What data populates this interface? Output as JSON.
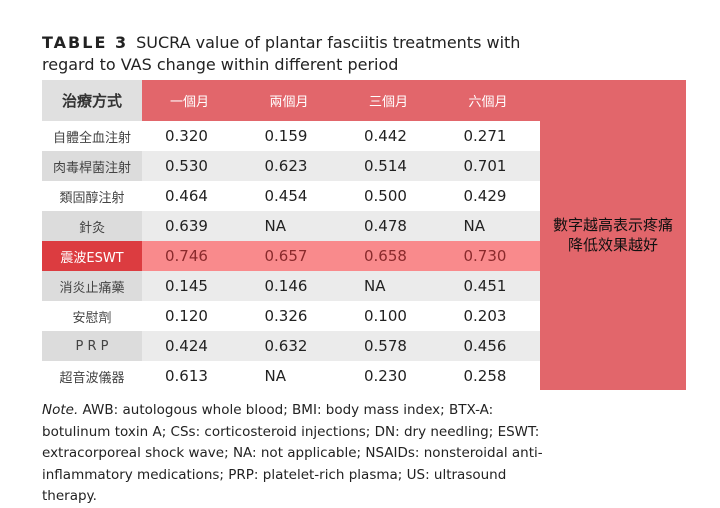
{
  "title": {
    "label": "TABLE 3",
    "text": "SUCRA value of plantar fasciitis treatments with regard to VAS change within different period"
  },
  "table": {
    "headers": [
      "治療方式",
      "一個月",
      "兩個月",
      "三個月",
      "六個月"
    ],
    "rows": [
      {
        "name": "自體全血注射",
        "values": [
          "0.320",
          "0.159",
          "0.442",
          "0.271"
        ]
      },
      {
        "name": "肉毒桿菌注射",
        "values": [
          "0.530",
          "0.623",
          "0.514",
          "0.701"
        ]
      },
      {
        "name": "類固醇注射",
        "values": [
          "0.464",
          "0.454",
          "0.500",
          "0.429"
        ]
      },
      {
        "name": "針灸",
        "values": [
          "0.639",
          "NA",
          "0.478",
          "NA"
        ]
      },
      {
        "name": "震波ESWT",
        "values": [
          "0.746",
          "0.657",
          "0.658",
          "0.730"
        ]
      },
      {
        "name": "消炎止痛藥",
        "values": [
          "0.145",
          "0.146",
          "NA",
          "0.451"
        ]
      },
      {
        "name": "安慰劑",
        "values": [
          "0.120",
          "0.326",
          "0.100",
          "0.203"
        ]
      },
      {
        "name": "P R P",
        "values": [
          "0.424",
          "0.632",
          "0.578",
          "0.456"
        ]
      },
      {
        "name": "超音波儀器",
        "values": [
          "0.613",
          "NA",
          "0.230",
          "0.258"
        ]
      }
    ]
  },
  "callout": "數字越高表示疼痛降低效果越好",
  "note": {
    "label": "Note.",
    "text": "AWB: autologous whole blood; BMI: body mass index; BTX-A: botulinum toxin A; CSs: corticosteroid injections; DN: dry needling; ESWT: extracorporeal shock wave; NA: not applicable; NSAIDs: nonsteroidal anti-inflammatory medications; PRP: platelet-rich plasma; US: ultrasound therapy."
  },
  "colors": {
    "header": "#e2666b",
    "highlight_label": "#dc3c40",
    "highlight_row": "#f98a8c"
  }
}
